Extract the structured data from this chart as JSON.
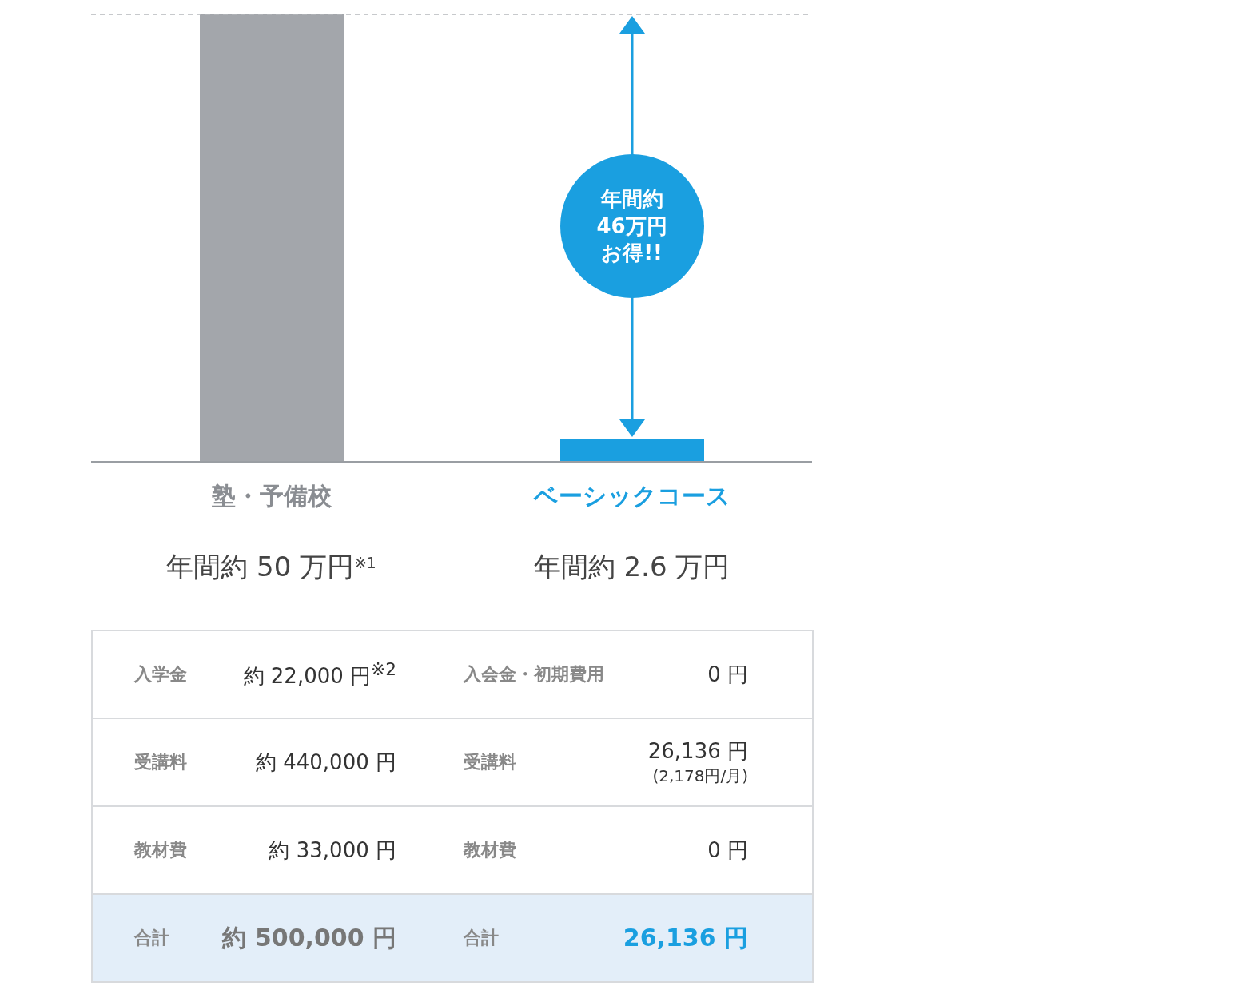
{
  "chart_data": {
    "type": "bar",
    "categories": [
      "塾・予備校",
      "ベーシックコース"
    ],
    "values": [
      50,
      2.6
    ],
    "colors": [
      "#a3a6ab",
      "#1a9fe0"
    ],
    "value_labels": [
      "年間約 50 万円$^{※1}$",
      "年間約 2.6 万円"
    ],
    "ylim": [
      0,
      50
    ],
    "tick_labels": "x",
    "ref_lines": [
      {
        "axis": "y",
        "value": 50,
        "color": "#b5b8bc",
        "line_style": "dashed"
      }
    ],
    "annotations": [
      "年間約46万円お得!!",
      "入学金",
      "約 22,000 円$^{※2}$",
      "入会金・初期費用",
      "0 円",
      "受講料",
      "約 440,000 円",
      "受講料",
      "26,136 円",
      "(2,178円/月)",
      "教材費",
      "約 33,000 円",
      "教材費",
      "0 円",
      "合計",
      "約 500,000 円",
      "合計",
      "26,136 円"
    ]
  }
}
